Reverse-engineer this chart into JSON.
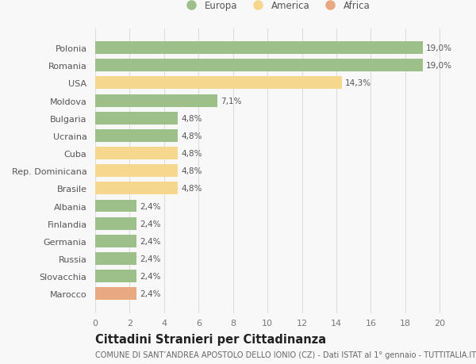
{
  "categories": [
    "Marocco",
    "Slovacchia",
    "Russia",
    "Germania",
    "Finlandia",
    "Albania",
    "Brasile",
    "Rep. Dominicana",
    "Cuba",
    "Ucraina",
    "Bulgaria",
    "Moldova",
    "USA",
    "Romania",
    "Polonia"
  ],
  "values": [
    2.4,
    2.4,
    2.4,
    2.4,
    2.4,
    2.4,
    4.8,
    4.8,
    4.8,
    4.8,
    4.8,
    7.1,
    14.3,
    19.0,
    19.0
  ],
  "labels": [
    "2,4%",
    "2,4%",
    "2,4%",
    "2,4%",
    "2,4%",
    "2,4%",
    "4,8%",
    "4,8%",
    "4,8%",
    "4,8%",
    "4,8%",
    "7,1%",
    "14,3%",
    "19,0%",
    "19,0%"
  ],
  "colors": [
    "#E8A882",
    "#9DC08B",
    "#9DC08B",
    "#9DC08B",
    "#9DC08B",
    "#9DC08B",
    "#F5D78E",
    "#F5D78E",
    "#F5D78E",
    "#9DC08B",
    "#9DC08B",
    "#9DC08B",
    "#F5D78E",
    "#9DC08B",
    "#9DC08B"
  ],
  "legend_labels": [
    "Europa",
    "America",
    "Africa"
  ],
  "legend_colors": [
    "#9DC08B",
    "#F5D78E",
    "#E8A882"
  ],
  "title": "Cittadini Stranieri per Cittadinanza",
  "subtitle": "COMUNE DI SANT’ANDREA APOSTOLO DELLO IONIO (CZ) - Dati ISTAT al 1° gennaio - TUTTITALIA.IT",
  "xlim": [
    0,
    21
  ],
  "xticks": [
    0,
    2,
    4,
    6,
    8,
    10,
    12,
    14,
    16,
    18,
    20
  ],
  "bg_color": "#f8f8f8",
  "plot_bg_color": "#f8f8f8",
  "grid_color": "#dddddd",
  "bar_height": 0.72,
  "title_fontsize": 10.5,
  "subtitle_fontsize": 7.0,
  "label_fontsize": 7.5,
  "ytick_fontsize": 8.0,
  "xtick_fontsize": 8.0,
  "legend_fontsize": 8.5
}
